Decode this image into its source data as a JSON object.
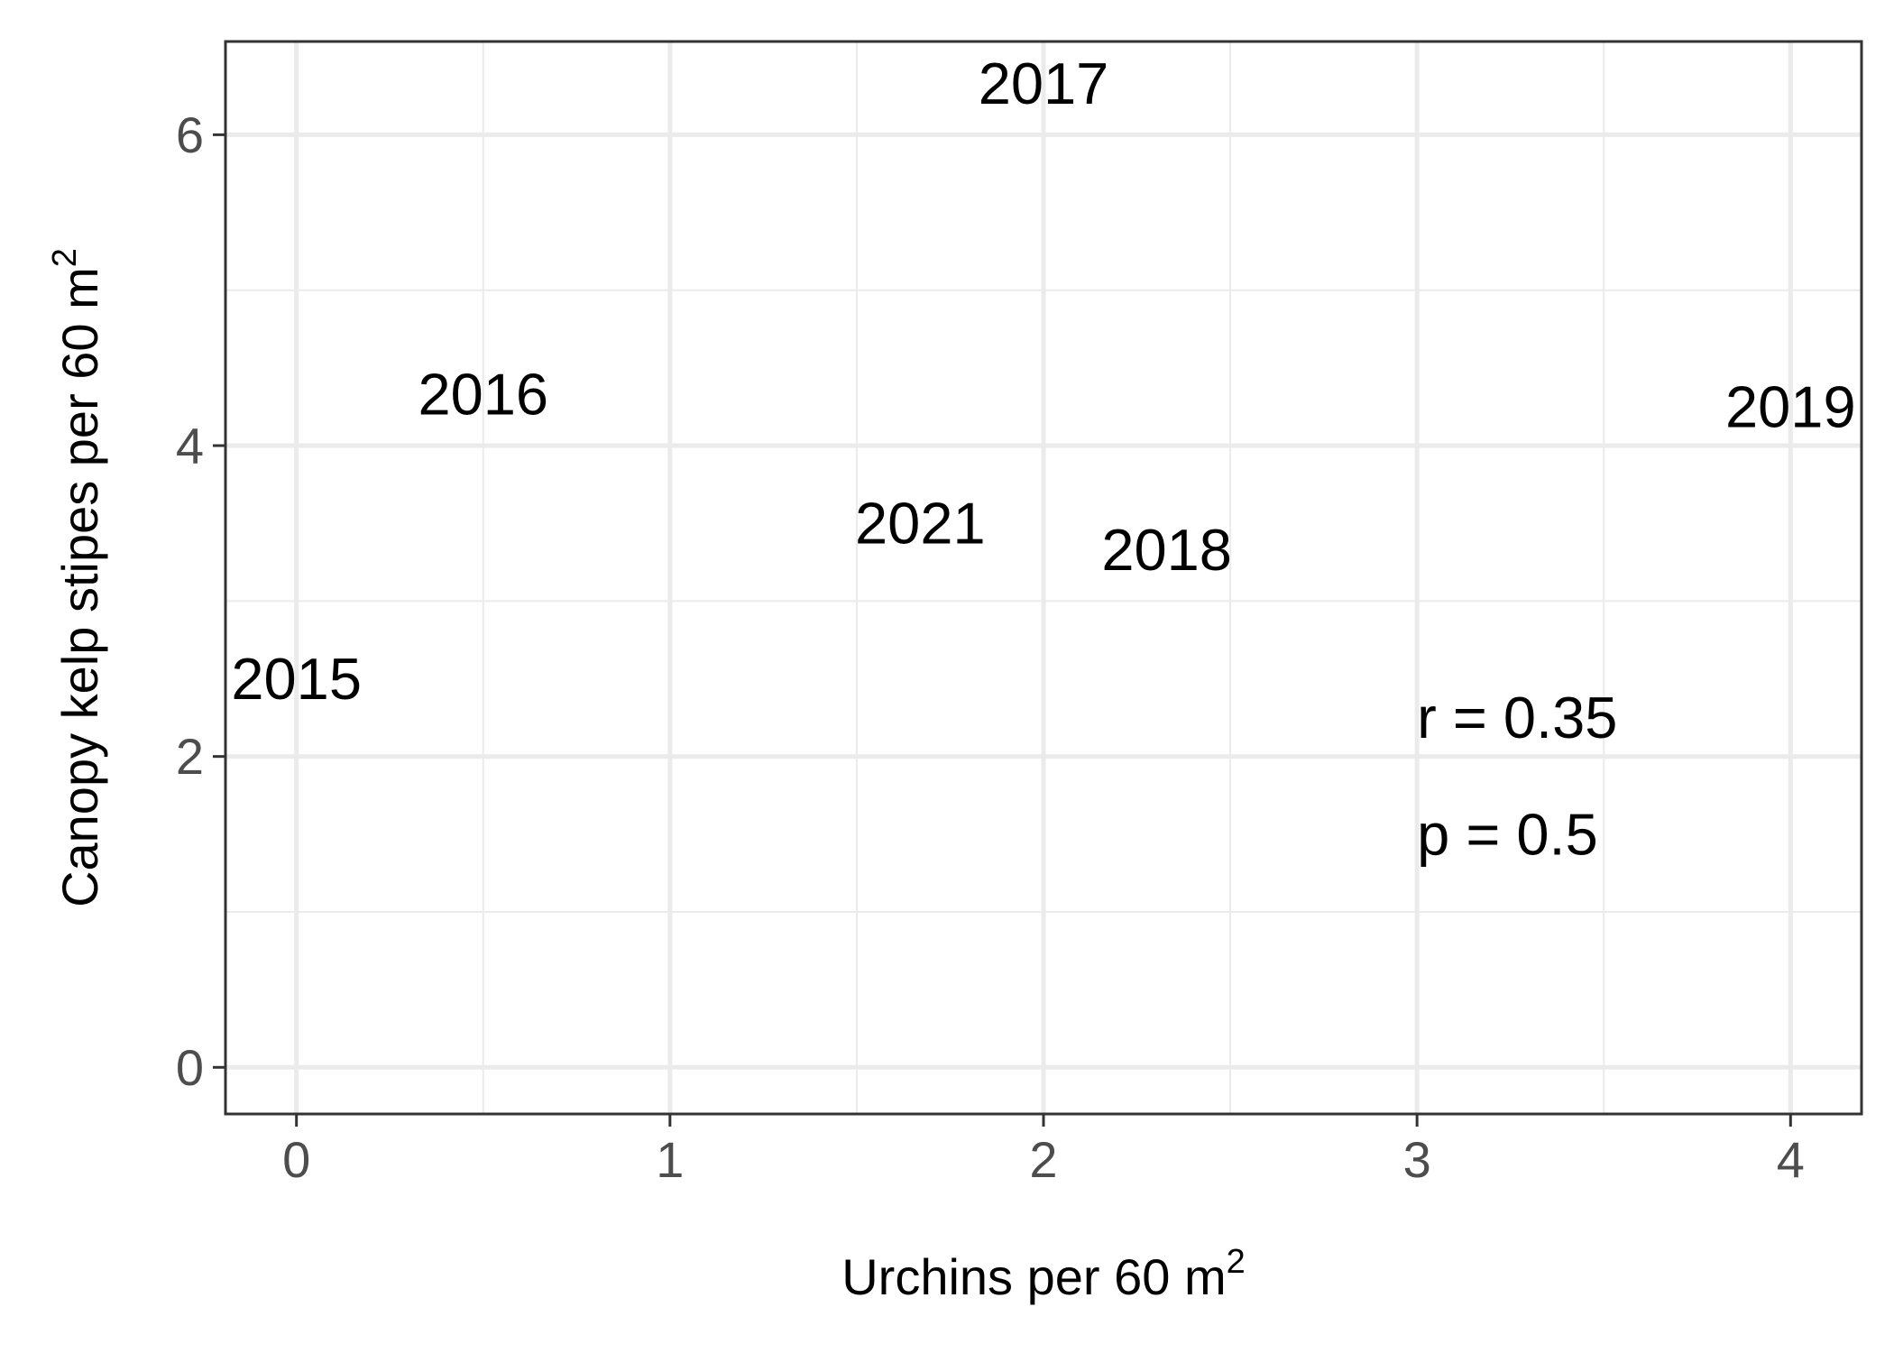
{
  "chart_data": {
    "type": "scatter",
    "xlabel": {
      "base": "Urchins per 60 m",
      "superscript": "2"
    },
    "ylabel": {
      "base": "Canopy kelp stipes per 60 m",
      "superscript": "2"
    },
    "xlim": [
      -0.19,
      4.19
    ],
    "ylim": [
      -0.3,
      6.6
    ],
    "x_ticks": [
      "0",
      "1",
      "2",
      "3",
      "4"
    ],
    "y_ticks": [
      "0",
      "2",
      "4",
      "6"
    ],
    "grid": true,
    "colors": {
      "grid": "#ebebeb",
      "panel_border": "#333333",
      "tick_text": "#4d4d4d",
      "text": "#000000"
    },
    "points": [
      {
        "label": "2015",
        "x": 0.0,
        "y": 2.5
      },
      {
        "label": "2016",
        "x": 0.5,
        "y": 4.33
      },
      {
        "label": "2017",
        "x": 2.0,
        "y": 6.33
      },
      {
        "label": "2018",
        "x": 2.33,
        "y": 3.33
      },
      {
        "label": "2019",
        "x": 4.0,
        "y": 4.25
      },
      {
        "label": "2021",
        "x": 1.67,
        "y": 3.5
      }
    ],
    "annotations": [
      {
        "text": "r = 0.35",
        "x": 3.0,
        "y": 2.25
      },
      {
        "text": "p = 0.5",
        "x": 3.0,
        "y": 1.5
      }
    ]
  }
}
